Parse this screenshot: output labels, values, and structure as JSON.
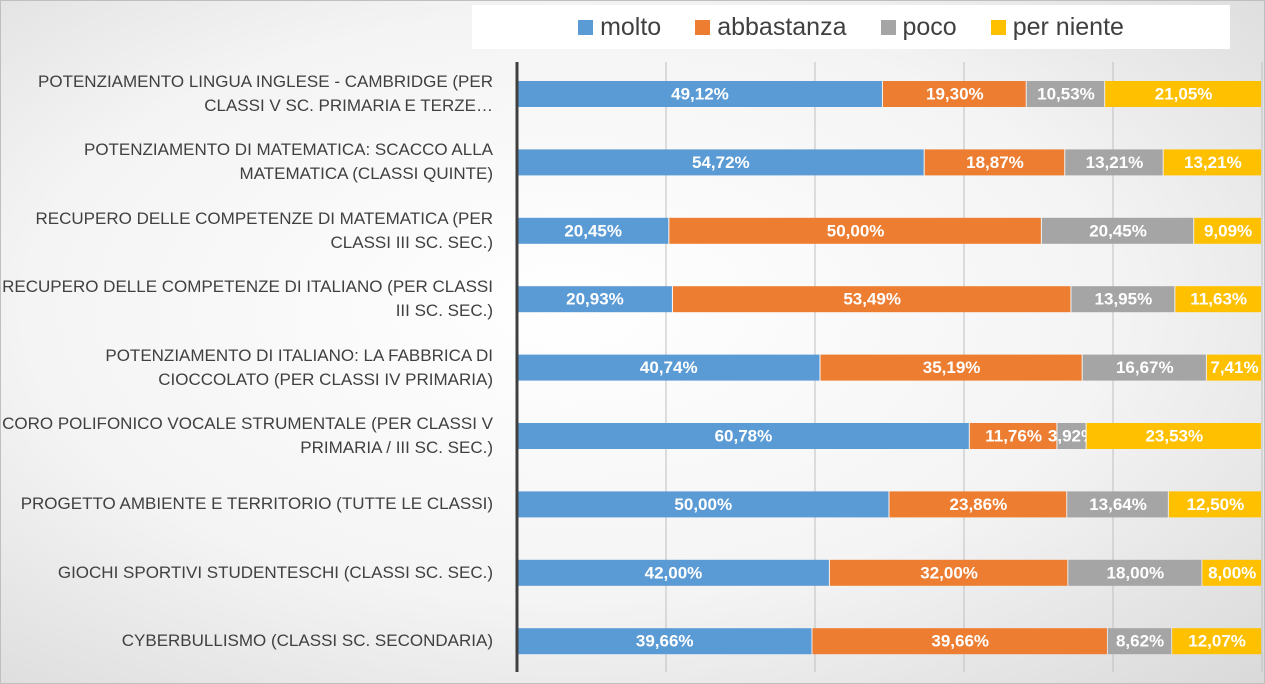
{
  "chart_data": {
    "type": "stacked-bar-horizontal",
    "categories": [
      "POTENZIAMENTO LINGUA INGLESE - CAMBRIDGE (PER CLASSI V SC. PRIMARIA E TERZE…",
      "POTENZIAMENTO DI MATEMATICA: SCACCO ALLA MATEMATICA (CLASSI QUINTE)",
      "RECUPERO DELLE COMPETENZE DI MATEMATICA (PER CLASSI III SC. SEC.)",
      "RECUPERO DELLE COMPETENZE DI ITALIANO (PER CLASSI III SC. SEC.)",
      "POTENZIAMENTO DI ITALIANO: LA FABBRICA DI CIOCCOLATO (PER CLASSI IV PRIMARIA)",
      "CORO POLIFONICO VOCALE STRUMENTALE (PER CLASSI V PRIMARIA / III SC. SEC.)",
      "PROGETTO AMBIENTE E TERRITORIO (TUTTE LE CLASSI)",
      "GIOCHI SPORTIVI STUDENTESCHI (CLASSI SC. SEC.)",
      "CYBERBULLISMO (CLASSI SC. SECONDARIA)"
    ],
    "series": [
      {
        "name": "molto",
        "color": "#5b9bd5",
        "values": [
          49.12,
          54.72,
          20.45,
          20.93,
          40.74,
          60.78,
          50.0,
          42.0,
          39.66
        ],
        "value_labels": [
          "49,12%",
          "54,72%",
          "20,45%",
          "20,93%",
          "40,74%",
          "60,78%",
          "50,00%",
          "42,00%",
          "39,66%"
        ]
      },
      {
        "name": "abbastanza",
        "color": "#ed7d31",
        "values": [
          19.3,
          18.87,
          50.0,
          53.49,
          35.19,
          11.76,
          23.86,
          32.0,
          39.66
        ],
        "value_labels": [
          "19,30%",
          "18,87%",
          "50,00%",
          "53,49%",
          "35,19%",
          "11,76%",
          "23,86%",
          "32,00%",
          "39,66%"
        ]
      },
      {
        "name": "poco",
        "color": "#a5a5a5",
        "values": [
          10.53,
          13.21,
          20.45,
          13.95,
          16.67,
          3.92,
          13.64,
          18.0,
          8.62
        ],
        "value_labels": [
          "10,53%",
          "13,21%",
          "20,45%",
          "13,95%",
          "16,67%",
          "3,92%",
          "13,64%",
          "18,00%",
          "8,62%"
        ]
      },
      {
        "name": "per niente",
        "color": "#ffc000",
        "values": [
          21.05,
          13.21,
          9.09,
          11.63,
          7.41,
          23.53,
          12.5,
          8.0,
          12.07
        ],
        "value_labels": [
          "21,05%",
          "13,21%",
          "9,09%",
          "11,63%",
          "7,41%",
          "23,53%",
          "12,50%",
          "8,00%",
          "12,07%"
        ]
      }
    ],
    "xlim": [
      0,
      100
    ],
    "xticks": [
      0,
      20,
      40,
      60,
      80,
      100
    ],
    "grid": true,
    "legend": "top"
  }
}
